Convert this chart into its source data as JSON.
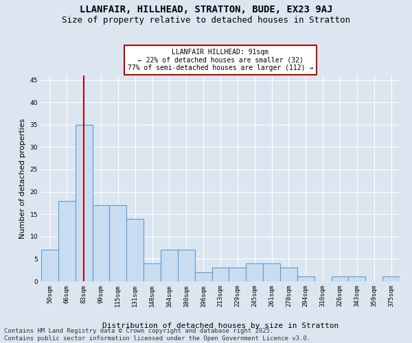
{
  "title_line1": "LLANFAIR, HILLHEAD, STRATTON, BUDE, EX23 9AJ",
  "title_line2": "Size of property relative to detached houses in Stratton",
  "xlabel": "Distribution of detached houses by size in Stratton",
  "ylabel": "Number of detached properties",
  "categories": [
    "50sqm",
    "66sqm",
    "83sqm",
    "99sqm",
    "115sqm",
    "131sqm",
    "148sqm",
    "164sqm",
    "180sqm",
    "196sqm",
    "213sqm",
    "229sqm",
    "245sqm",
    "261sqm",
    "278sqm",
    "294sqm",
    "310sqm",
    "326sqm",
    "343sqm",
    "359sqm",
    "375sqm"
  ],
  "values": [
    7,
    18,
    35,
    17,
    17,
    14,
    4,
    7,
    7,
    2,
    3,
    3,
    4,
    4,
    3,
    1,
    0,
    1,
    1,
    0,
    1
  ],
  "bar_color": "#c9ddf0",
  "bar_edge_color": "#5b9bd5",
  "vline_x": 2.0,
  "vline_color": "#c00000",
  "annotation_text": "LLANFAIR HILLHEAD: 91sqm\n← 22% of detached houses are smaller (32)\n77% of semi-detached houses are larger (112) →",
  "annotation_box_color": "#ffffff",
  "annotation_box_edge": "#c00000",
  "ylim": [
    0,
    46
  ],
  "yticks": [
    0,
    5,
    10,
    15,
    20,
    25,
    30,
    35,
    40,
    45
  ],
  "background_color": "#dce6f1",
  "grid_color": "#ffffff",
  "footer_line1": "Contains HM Land Registry data © Crown copyright and database right 2025.",
  "footer_line2": "Contains public sector information licensed under the Open Government Licence v3.0.",
  "title_fontsize": 10,
  "subtitle_fontsize": 9,
  "axis_label_fontsize": 8,
  "tick_fontsize": 6.5,
  "annotation_fontsize": 7,
  "footer_fontsize": 6.5
}
